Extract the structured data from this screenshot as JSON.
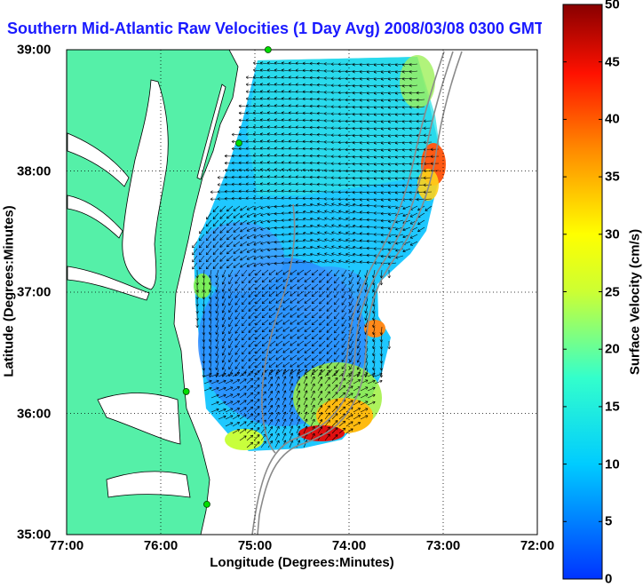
{
  "chart_data": {
    "type": "heatmap",
    "title": "Southern Mid-Atlantic Raw Velocities (1 Day Avg) 2008/03/08 0300 GMT",
    "xlabel": "Longitude (Degrees:Minutes)",
    "ylabel": "Latitude (Degrees:Minutes)",
    "x_ticks": [
      "77:00",
      "76:00",
      "75:00",
      "74:00",
      "73:00",
      "72:00"
    ],
    "y_ticks": [
      "39:00",
      "38:00",
      "37:00",
      "36:00",
      "35:00"
    ],
    "xlim": [
      -77,
      -72
    ],
    "ylim": [
      35,
      39
    ],
    "grid": true,
    "colorbar": {
      "label": "Surface Velocity (cm/s)",
      "range": [
        0,
        50
      ],
      "ticks": [
        "0",
        "5",
        "10",
        "15",
        "20",
        "25",
        "30",
        "35",
        "40",
        "45",
        "50"
      ]
    },
    "regions": [
      {
        "lat": 38.8,
        "lon": -74.3,
        "speed": 16
      },
      {
        "lat": 38.4,
        "lon": -74.7,
        "speed": 14
      },
      {
        "lat": 38.0,
        "lon": -73.1,
        "speed": 28
      },
      {
        "lat": 37.6,
        "lon": -75.0,
        "speed": 10
      },
      {
        "lat": 37.3,
        "lon": -75.4,
        "speed": 6
      },
      {
        "lat": 36.8,
        "lon": -74.6,
        "speed": 6
      },
      {
        "lat": 36.4,
        "lon": -75.2,
        "speed": 5
      },
      {
        "lat": 36.0,
        "lon": -74.2,
        "speed": 30
      },
      {
        "lat": 35.8,
        "lon": -74.3,
        "speed": 42
      },
      {
        "lat": 35.8,
        "lon": -75.2,
        "speed": 20
      }
    ],
    "stations": [
      {
        "lat": 39.0,
        "lon": -74.86
      },
      {
        "lat": 38.23,
        "lon": -75.17
      },
      {
        "lat": 36.18,
        "lon": -75.73
      },
      {
        "lat": 35.25,
        "lon": -75.51
      }
    ]
  }
}
